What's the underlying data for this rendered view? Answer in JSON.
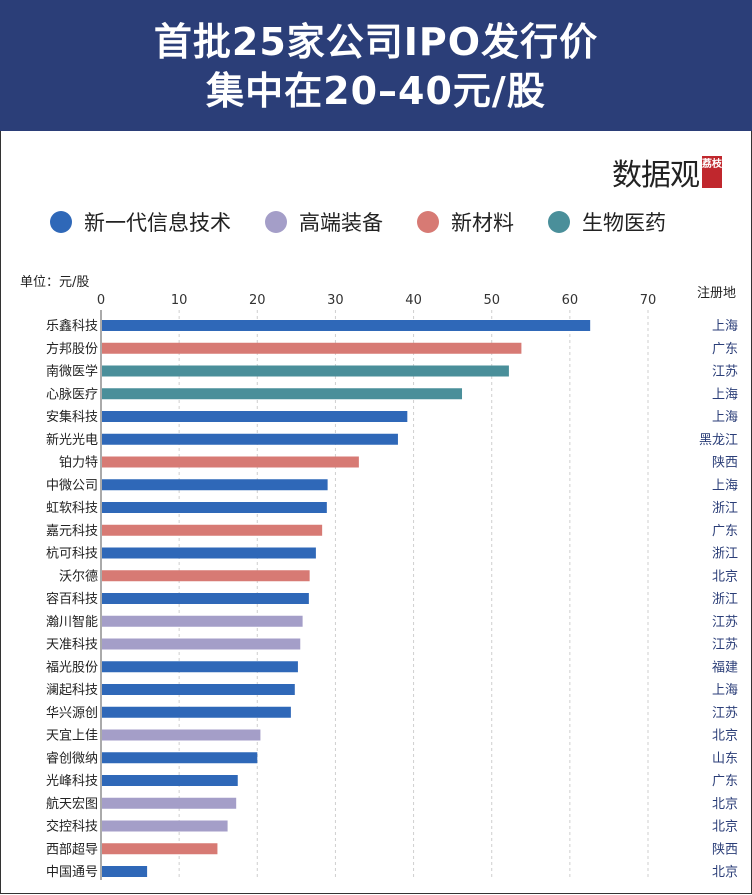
{
  "header": {
    "title_line1": "首批25家公司IPO发行价",
    "title_line2": "集中在20–40元/股"
  },
  "logo": {
    "word": "数据观",
    "stamp": "荔枝"
  },
  "colors": {
    "header_bg": "#2b3e78",
    "新一代信息技术": "#2f68b8",
    "高端装备": "#a49ec8",
    "新材料": "#d77a74",
    "生物医药": "#4a8f9a"
  },
  "legend": [
    {
      "label": "新一代信息技术",
      "color": "#2f68b8"
    },
    {
      "label": "高端装备",
      "color": "#a49ec8"
    },
    {
      "label": "新材料",
      "color": "#d77a74"
    },
    {
      "label": "生物医药",
      "color": "#4a8f9a"
    }
  ],
  "unit_label": "单位：元/股",
  "region_header": "注册地",
  "chart_data": {
    "type": "bar",
    "orientation": "horizontal",
    "title": "首批25家公司IPO发行价集中在20–40元/股",
    "xlabel": "单位：元/股",
    "xlim": [
      0,
      70
    ],
    "xticks": [
      0,
      10,
      20,
      30,
      40,
      50,
      60,
      70
    ],
    "grid": true,
    "legend_position": "top",
    "categories": [
      "乐鑫科技",
      "方邦股份",
      "南微医学",
      "心脉医疗",
      "安集科技",
      "新光光电",
      "铂力特",
      "中微公司",
      "虹软科技",
      "嘉元科技",
      "杭可科技",
      "沃尔德",
      "容百科技",
      "瀚川智能",
      "天准科技",
      "福光股份",
      "澜起科技",
      "华兴源创",
      "天宜上佳",
      "睿创微纳",
      "光峰科技",
      "航天宏图",
      "交控科技",
      "西部超导",
      "中国通号"
    ],
    "values": [
      62.6,
      53.8,
      52.2,
      46.2,
      39.2,
      38.0,
      33.0,
      29.0,
      28.9,
      28.3,
      27.5,
      26.7,
      26.6,
      25.8,
      25.5,
      25.2,
      24.8,
      24.3,
      20.4,
      20.0,
      17.5,
      17.3,
      16.2,
      14.9,
      5.9
    ],
    "sectors": [
      "新一代信息技术",
      "新材料",
      "生物医药",
      "生物医药",
      "新一代信息技术",
      "新一代信息技术",
      "新材料",
      "新一代信息技术",
      "新一代信息技术",
      "新材料",
      "新一代信息技术",
      "新材料",
      "新一代信息技术",
      "高端装备",
      "高端装备",
      "新一代信息技术",
      "新一代信息技术",
      "新一代信息技术",
      "高端装备",
      "新一代信息技术",
      "新一代信息技术",
      "高端装备",
      "高端装备",
      "新材料",
      "新一代信息技术"
    ],
    "regions": [
      "上海",
      "广东",
      "江苏",
      "上海",
      "上海",
      "黑龙江",
      "陕西",
      "上海",
      "浙江",
      "广东",
      "浙江",
      "北京",
      "浙江",
      "江苏",
      "江苏",
      "福建",
      "上海",
      "江苏",
      "北京",
      "山东",
      "广东",
      "北京",
      "北京",
      "陕西",
      "北京"
    ]
  }
}
